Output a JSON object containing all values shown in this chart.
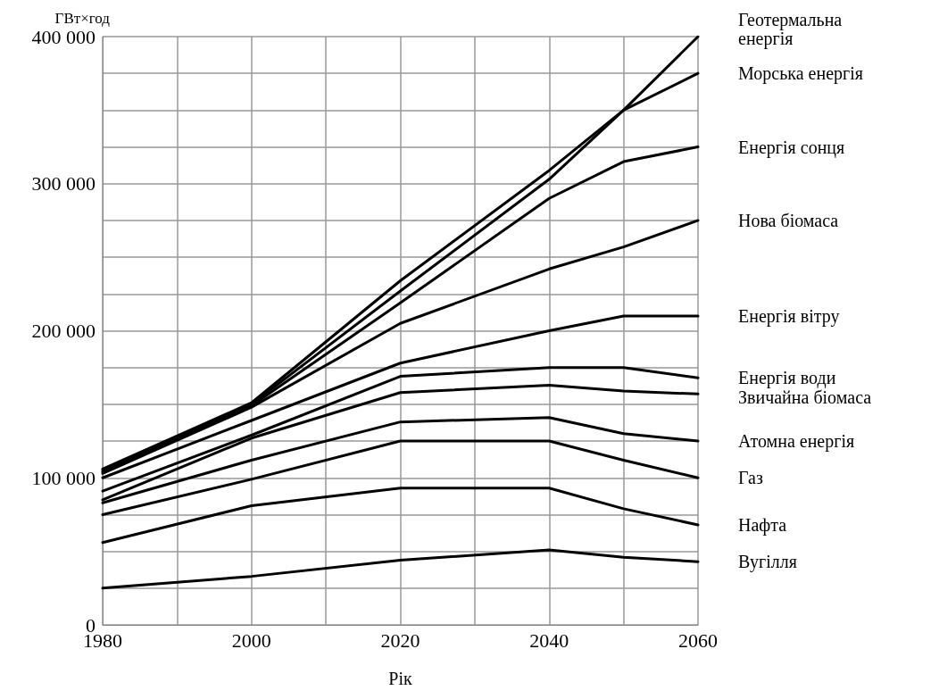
{
  "chart_data": {
    "type": "line",
    "xlabel": "Рік",
    "ylabel": "ГВт×год",
    "x": [
      1980,
      2000,
      2020,
      2040,
      2050,
      2060
    ],
    "xlim": [
      1980,
      2060
    ],
    "xticks": [
      1980,
      {
        "value": 1990,
        "label": null
      },
      2000,
      {
        "value": 2010,
        "label": null
      },
      2020,
      {
        "value": 2030,
        "label": null
      },
      2040,
      {
        "value": 2050,
        "label": null
      },
      2060
    ],
    "ylim": [
      0,
      400000
    ],
    "yticks": [
      0,
      {
        "value": 25000,
        "label": null
      },
      {
        "value": 50000,
        "label": null
      },
      {
        "value": 75000,
        "label": null
      },
      {
        "value": 100000,
        "label": "100 000"
      },
      {
        "value": 125000,
        "label": null
      },
      {
        "value": 150000,
        "label": null
      },
      {
        "value": 175000,
        "label": null
      },
      {
        "value": 200000,
        "label": "200 000"
      },
      {
        "value": 225000,
        "label": null
      },
      {
        "value": 250000,
        "label": null
      },
      {
        "value": 275000,
        "label": null
      },
      {
        "value": 300000,
        "label": "300 000"
      },
      {
        "value": 325000,
        "label": null
      },
      {
        "value": 350000,
        "label": null
      },
      {
        "value": 375000,
        "label": null
      },
      {
        "value": 400000,
        "label": "400 000"
      }
    ],
    "grid": true,
    "legend": false,
    "marker": "none",
    "line_style": "solid",
    "series": [
      {
        "name": "Геотермальна енергія",
        "color": "#000000",
        "values": [
          106000,
          151000,
          234000,
          309000,
          350000,
          400000
        ]
      },
      {
        "name": "Морська енергія",
        "color": "#000000",
        "values": [
          105000,
          150000,
          227000,
          303000,
          350000,
          375000
        ]
      },
      {
        "name": "Енергія сонця",
        "color": "#000000",
        "values": [
          104000,
          149000,
          219000,
          290000,
          315000,
          325000
        ]
      },
      {
        "name": "Нова біомаса",
        "color": "#000000",
        "values": [
          103000,
          148000,
          205000,
          242000,
          257000,
          275000
        ]
      },
      {
        "name": "Енергія вітру",
        "color": "#000000",
        "values": [
          100000,
          139000,
          178000,
          200000,
          210000,
          210000
        ]
      },
      {
        "name": "Енергія води",
        "color": "#000000",
        "values": [
          91000,
          129000,
          169000,
          175000,
          175000,
          168000
        ]
      },
      {
        "name": "Звичайна біомаса",
        "color": "#000000",
        "values": [
          85000,
          127000,
          158000,
          163000,
          159000,
          157000
        ]
      },
      {
        "name": "Атомна енергія",
        "color": "#000000",
        "values": [
          83000,
          112000,
          138000,
          141000,
          130000,
          125000
        ]
      },
      {
        "name": "Газ",
        "color": "#000000",
        "values": [
          75000,
          99000,
          125000,
          125000,
          112000,
          100000
        ]
      },
      {
        "name": "Нафта",
        "color": "#000000",
        "values": [
          56000,
          81000,
          93000,
          93000,
          79000,
          68000
        ]
      },
      {
        "name": "Вугілля",
        "color": "#000000",
        "values": [
          25000,
          33000,
          44000,
          51000,
          46000,
          43000
        ]
      }
    ]
  }
}
